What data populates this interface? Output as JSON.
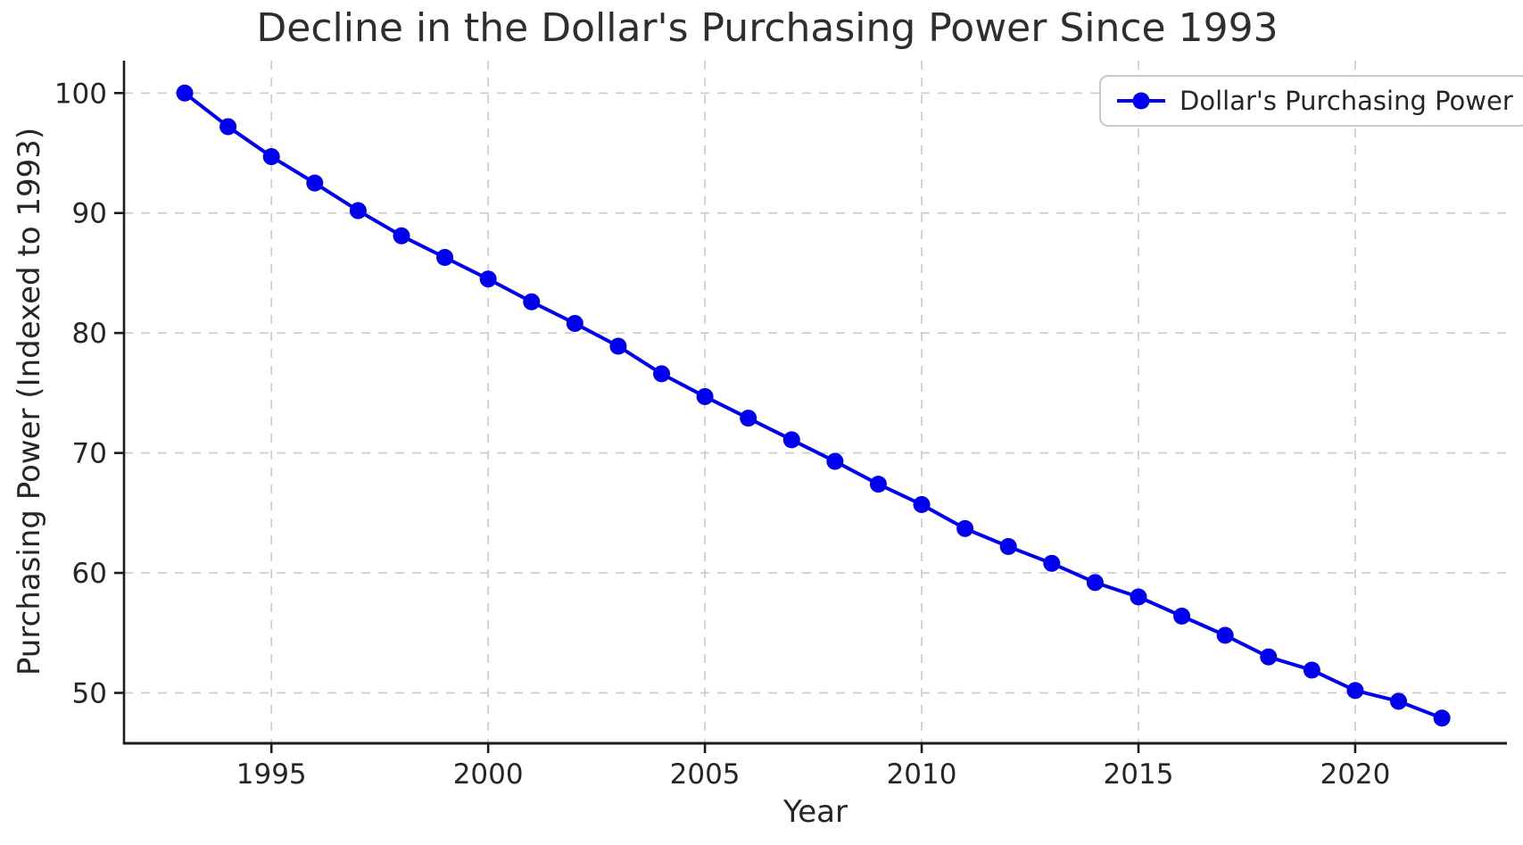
{
  "chart_data": {
    "type": "line",
    "title": "Decline in the Dollar's Purchasing Power Since 1993",
    "xlabel": "Year",
    "ylabel": "Purchasing Power (Indexed to 1993)",
    "x": [
      1993,
      1994,
      1995,
      1996,
      1997,
      1998,
      1999,
      2000,
      2001,
      2002,
      2003,
      2004,
      2005,
      2006,
      2007,
      2008,
      2009,
      2010,
      2011,
      2012,
      2013,
      2014,
      2015,
      2016,
      2017,
      2018,
      2019,
      2020,
      2021,
      2022
    ],
    "series": [
      {
        "name": "Dollar's Purchasing Power",
        "values": [
          100.0,
          97.2,
          94.7,
          92.5,
          90.2,
          88.1,
          86.3,
          84.5,
          82.6,
          80.8,
          78.9,
          76.6,
          74.7,
          72.9,
          71.1,
          69.3,
          67.4,
          65.7,
          63.7,
          62.2,
          60.8,
          59.2,
          58.0,
          56.4,
          54.8,
          53.0,
          51.9,
          50.2,
          49.3,
          47.9
        ]
      }
    ],
    "xlim": [
      1991.6,
      2023.5
    ],
    "ylim": [
      45.8,
      102.7
    ],
    "xticks": [
      1995,
      2000,
      2005,
      2010,
      2015,
      2020
    ],
    "yticks": [
      50,
      60,
      70,
      80,
      90,
      100
    ],
    "grid": true,
    "grid_style": "dashed",
    "legend_position": "upper right",
    "marker": "circle"
  },
  "colors": {
    "line": "#0000ee",
    "grid": "#cccccc",
    "text": "#262626",
    "tick_label": "#262626",
    "spine": "#1c1c1c",
    "legend_border": "#c9c9c9",
    "background": "#ffffff"
  }
}
